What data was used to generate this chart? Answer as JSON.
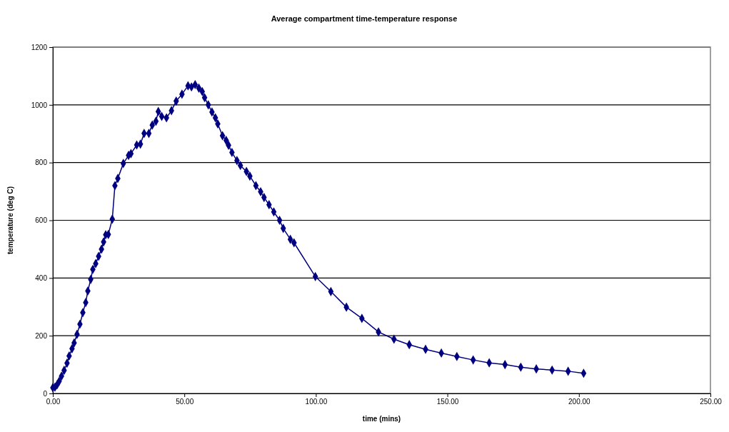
{
  "chart_data": {
    "type": "line",
    "title": "Average compartment time-temperature response",
    "xlabel": "time (mins)",
    "ylabel": "temperature (deg C)",
    "xlim": [
      0,
      250
    ],
    "xticks": [
      {
        "value": 0,
        "label": "0.00"
      },
      {
        "value": 50,
        "label": "50.00"
      },
      {
        "value": 100,
        "label": "100.00"
      },
      {
        "value": 150,
        "label": "150.00"
      },
      {
        "value": 200,
        "label": "200.00"
      },
      {
        "value": 250,
        "label": "250.00"
      }
    ],
    "ylim": [
      0,
      1200
    ],
    "yticks": [
      0,
      200,
      400,
      600,
      800,
      1000,
      1200
    ],
    "grid": "y",
    "marker": "diamond",
    "line_style": "solid",
    "series": [
      {
        "color": "#000080",
        "x": [
          0,
          0.8,
          1.6,
          2.4,
          3.3,
          4.3,
          5.4,
          6.2,
          7.3,
          8.1,
          9.2,
          10.3,
          11.4,
          12.5,
          13.3,
          14.4,
          15.2,
          16.3,
          17.4,
          18.5,
          19.3,
          20.1,
          21.1,
          22.6,
          23.6,
          24.7,
          26.8,
          28.8,
          29.7,
          31.9,
          33.3,
          34.7,
          36.5,
          37.8,
          39.2,
          40.1,
          41.4,
          43.2,
          45.1,
          46.9,
          49.1,
          51.4,
          52.7,
          54.1,
          55.5,
          56.8,
          57.7,
          59.1,
          60.5,
          61.8,
          62.7,
          64.5,
          65.9,
          66.8,
          68.1,
          70.0,
          71.3,
          73.6,
          74.9,
          77.2,
          79.0,
          80.3,
          82.2,
          84.0,
          86.2,
          87.6,
          90.3,
          91.7,
          99.8,
          105.7,
          111.6,
          117.5,
          123.8,
          129.7,
          135.5,
          141.7,
          147.7,
          153.6,
          159.8,
          165.9,
          171.9,
          177.9,
          183.8,
          189.8,
          195.9,
          201.8
        ],
        "values": [
          20,
          22,
          30,
          42,
          60,
          80,
          105,
          130,
          155,
          175,
          205,
          240,
          280,
          315,
          355,
          395,
          430,
          450,
          475,
          500,
          525,
          550,
          551,
          604,
          720,
          745,
          797,
          825,
          831,
          861,
          864,
          901,
          901,
          930,
          943,
          977,
          960,
          955,
          980,
          1013,
          1037,
          1066,
          1062,
          1070,
          1058,
          1046,
          1025,
          1000,
          975,
          955,
          934,
          893,
          877,
          860,
          835,
          807,
          790,
          769,
          753,
          720,
          699,
          679,
          654,
          629,
          600,
          572,
          534,
          522,
          405,
          353,
          299,
          260,
          213,
          188,
          169,
          153,
          140,
          128,
          116,
          106,
          100,
          91,
          85,
          81,
          77,
          70
        ]
      }
    ]
  }
}
